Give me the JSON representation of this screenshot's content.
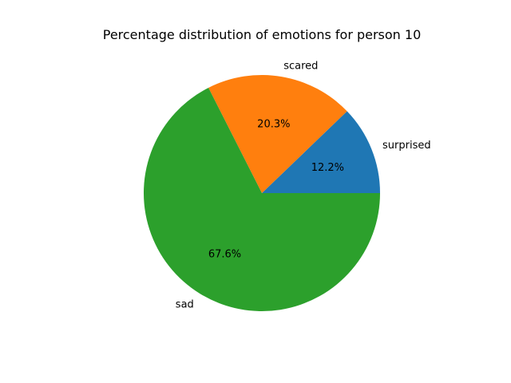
{
  "chart_data": {
    "type": "pie",
    "title": "Percentage distribution of emotions for person 10",
    "slices": [
      {
        "label": "surprised",
        "value": 12.2,
        "pct_label": "12.2%",
        "color": "#1f77b4"
      },
      {
        "label": "scared",
        "value": 20.3,
        "pct_label": "20.3%",
        "color": "#ff7f0e"
      },
      {
        "label": "sad",
        "value": 67.6,
        "pct_label": "67.6%",
        "color": "#2ca02c"
      }
    ],
    "start_angle_deg": 0,
    "direction": "counterclockwise",
    "legend": "none"
  }
}
